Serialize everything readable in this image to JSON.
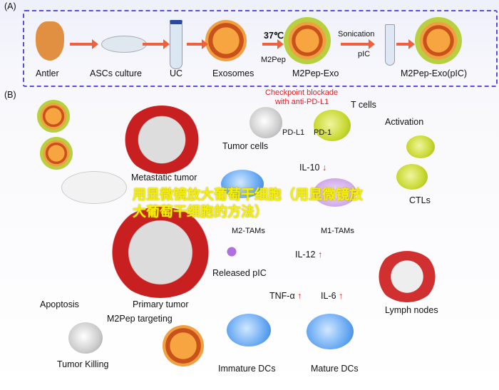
{
  "panel_a": {
    "label": "(A)",
    "steps": [
      "Antler",
      "ASCs culture",
      "UC",
      "Exosomes",
      "M2Pep-Exo",
      "M2Pep-Exo(pIC)"
    ],
    "temp": "37℃",
    "m2pep": "M2Pep",
    "sonication": "Sonication",
    "pic": "pIC"
  },
  "panel_b": {
    "label": "(B)",
    "checkpoint": "Checkpoint blockade",
    "checkpoint2": "with anti-PD-L1",
    "t_cells": "T cells",
    "pdl1": "PD-L1",
    "pd1": "PD-1",
    "activation": "Activation",
    "tumor_cells": "Tumor cells",
    "metastatic": "Metastatic tumor",
    "il10": "IL-10",
    "down": "↓",
    "up": "↑",
    "m2tams": "M2-TAMs",
    "m1tams": "M1-TAMs",
    "ctls": "CTLs",
    "il12": "IL-12",
    "released": "Released pIC",
    "tnf": "TNF-α",
    "il6": "IL-6",
    "primary": "Primary tumor",
    "apoptosis": "Apoptosis",
    "targeting": "M2Pep targeting",
    "killing": "Tumor Killing",
    "immature": "Immature DCs",
    "mature": "Mature DCs",
    "lymph": "Lymph nodes"
  },
  "watermark": "用显微镜放大葡萄干细胞（用显微镜放大葡萄干细胞的方法）",
  "colors": {
    "border": "#5b4be0",
    "arrow": "#f0603a",
    "red": "#e02020",
    "watermark": "#f4f000"
  }
}
